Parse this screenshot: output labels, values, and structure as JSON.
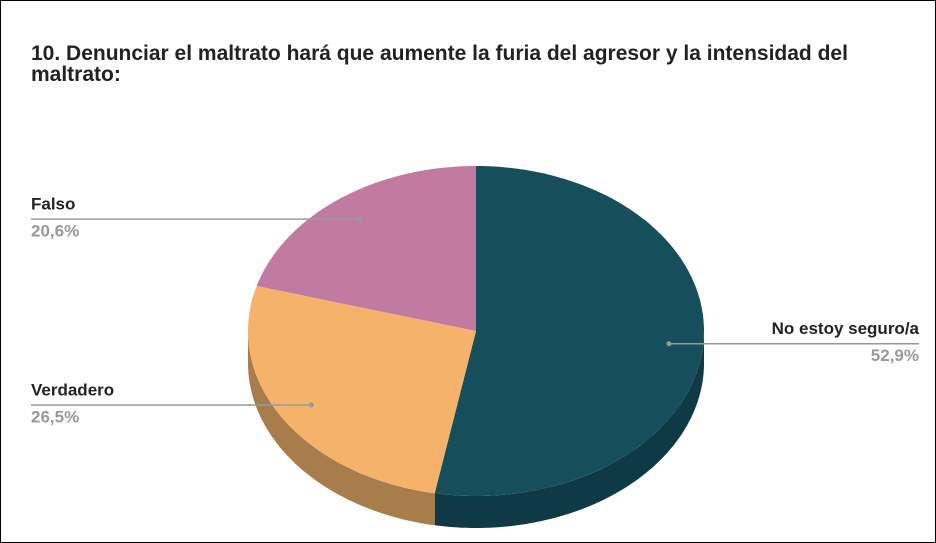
{
  "chart_data": {
    "type": "pie3d",
    "title": "10. Denunciar el maltrato hará que aumente la furia del agresor y la intensidad del maltrato:",
    "categories": [
      "No estoy seguro/a",
      "Verdadero",
      "Falso"
    ],
    "values": [
      52.9,
      26.5,
      20.6
    ],
    "value_labels": [
      "52,9%",
      "26,5%",
      "20,6%"
    ],
    "colors": [
      "#174e5c",
      "#f5b26b",
      "#c27ba0"
    ],
    "side_colors": [
      "#0f3a45",
      "#a87c4b",
      "#8e5775"
    ]
  }
}
